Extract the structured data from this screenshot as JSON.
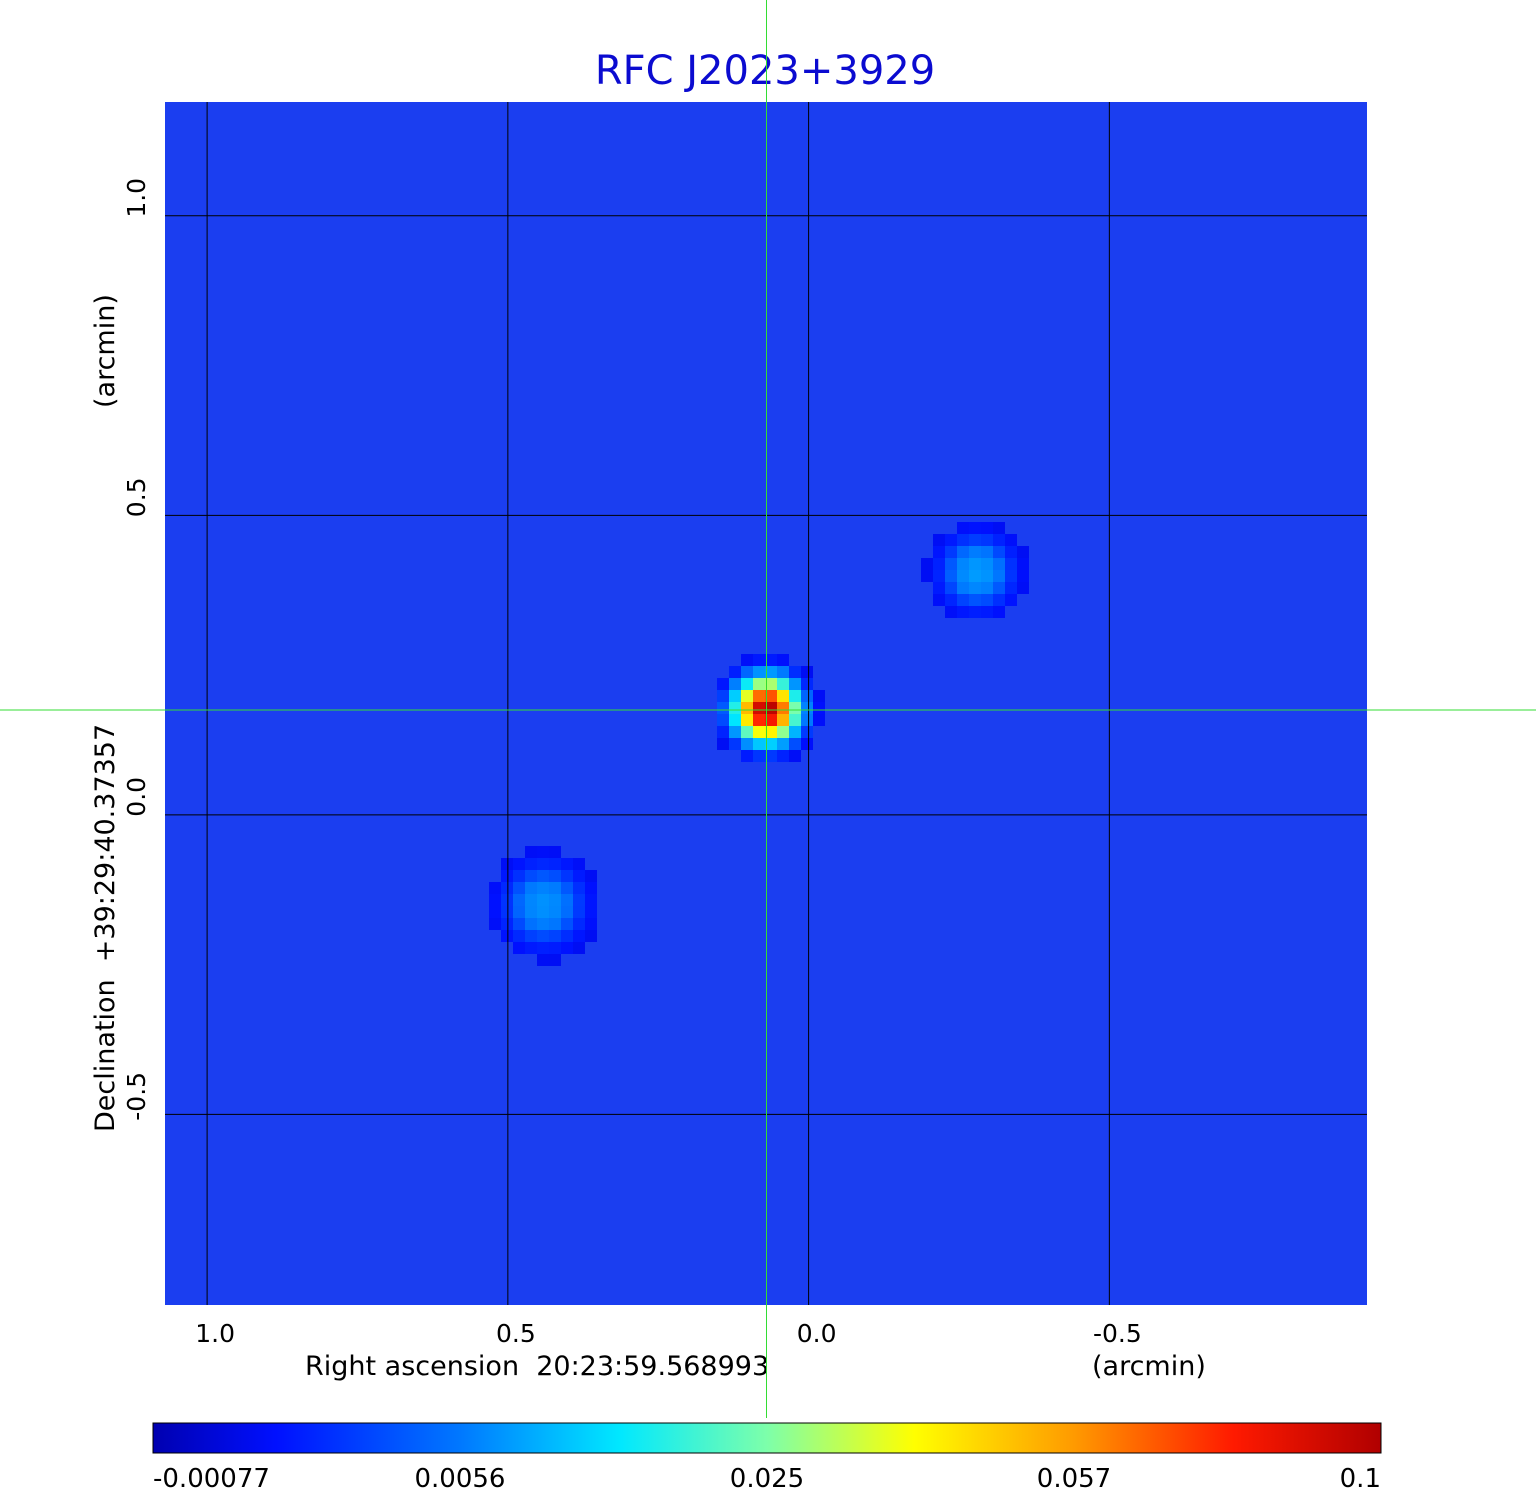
{
  "chart_data": {
    "type": "heatmap",
    "title": "RFC J2023+3929",
    "xlabel": "Right ascension  20:23:59.568993",
    "xunit": "(arcmin)",
    "ylabel": "Declination  +39:29:40.37357",
    "yunit": "(arcmin)",
    "xlim": [
      1.07,
      -0.93
    ],
    "ylim": [
      -0.82,
      1.19
    ],
    "x_ticks": [
      {
        "value": 1.0,
        "label": "1.0"
      },
      {
        "value": 0.5,
        "label": "0.5"
      },
      {
        "value": 0.0,
        "label": "0.0"
      },
      {
        "value": -0.5,
        "label": "-0.5"
      }
    ],
    "y_ticks": [
      {
        "value": 1.0,
        "label": "1.0"
      },
      {
        "value": 0.5,
        "label": "0.5"
      },
      {
        "value": 0.0,
        "label": "0.0"
      },
      {
        "value": -0.5,
        "label": "-0.5"
      }
    ],
    "grid": true,
    "crosshair": {
      "x": 0.07,
      "y": 0.175,
      "color": "#33dd33"
    },
    "sources": [
      {
        "x": 0.07,
        "y": 0.175,
        "peak": 0.1,
        "sigma": 0.028
      },
      {
        "x": -0.28,
        "y": 0.405,
        "peak": 0.008,
        "sigma": 0.035
      },
      {
        "x": 0.44,
        "y": -0.15,
        "peak": 0.007,
        "sigma": 0.04
      }
    ],
    "colorbar": {
      "min": -0.00077,
      "max": 0.1,
      "scale": "nonlinear",
      "colormap": "jet",
      "ticks": [
        {
          "value": -0.00077,
          "label": "-0.00077",
          "position": 0.0
        },
        {
          "value": 0.0056,
          "label": "0.0056",
          "position": 0.25
        },
        {
          "value": 0.025,
          "label": "0.025",
          "position": 0.5
        },
        {
          "value": 0.057,
          "label": "0.057",
          "position": 0.75
        },
        {
          "value": 0.1,
          "label": "0.1",
          "position": 1.0
        }
      ]
    },
    "colors": {
      "background_map": "#1b3ef0",
      "grid": "#000000",
      "title": "#0b0bd0"
    }
  }
}
